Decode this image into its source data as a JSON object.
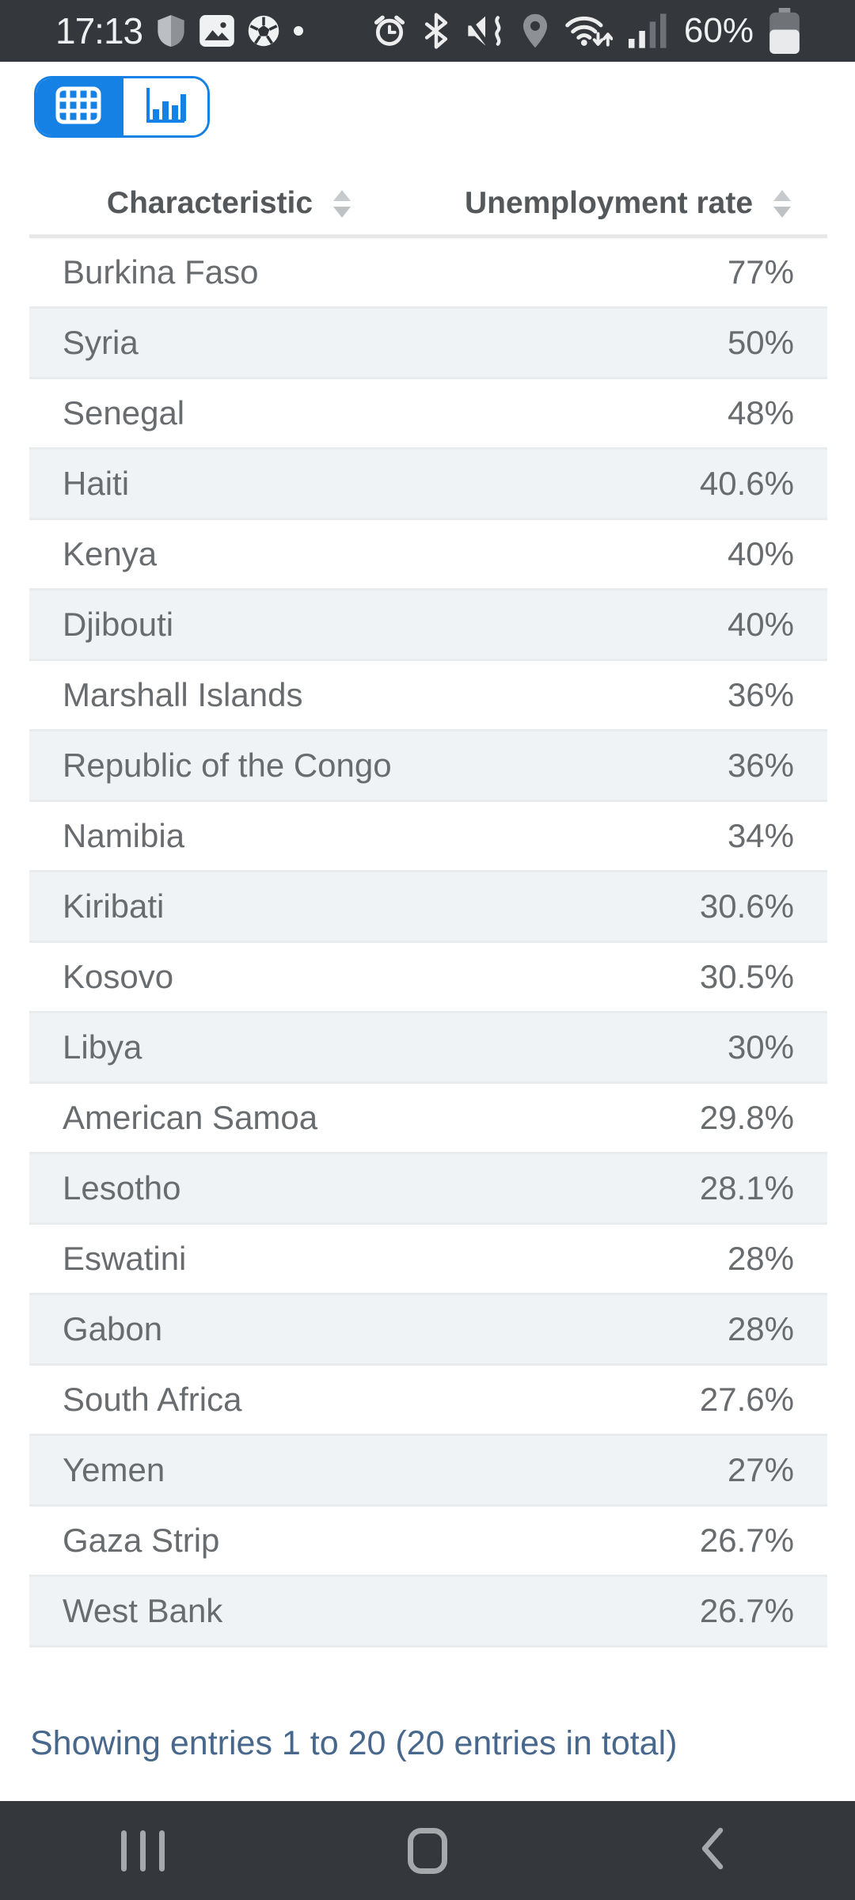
{
  "status_bar": {
    "time": "17:13",
    "battery_percent": "60%",
    "left_icons": [
      "shield-icon",
      "gallery-icon",
      "soccer-ball-icon",
      "notification-dot-icon"
    ],
    "right_icons": [
      "alarm-icon",
      "bluetooth-icon",
      "mute-vibrate-icon",
      "location-icon",
      "wifi-icon",
      "signal-icon",
      "battery-icon"
    ]
  },
  "view_toggle": {
    "options": [
      {
        "id": "table-view",
        "icon": "table-grid-icon",
        "active": true
      },
      {
        "id": "chart-view",
        "icon": "bar-chart-icon",
        "active": false
      }
    ]
  },
  "table": {
    "columns": [
      "Characteristic",
      "Unemployment rate"
    ],
    "rows": [
      {
        "characteristic": "Burkina Faso",
        "unemployment_rate": "77%"
      },
      {
        "characteristic": "Syria",
        "unemployment_rate": "50%"
      },
      {
        "characteristic": "Senegal",
        "unemployment_rate": "48%"
      },
      {
        "characteristic": "Haiti",
        "unemployment_rate": "40.6%"
      },
      {
        "characteristic": "Kenya",
        "unemployment_rate": "40%"
      },
      {
        "characteristic": "Djibouti",
        "unemployment_rate": "40%"
      },
      {
        "characteristic": "Marshall Islands",
        "unemployment_rate": "36%"
      },
      {
        "characteristic": "Republic of the Congo",
        "unemployment_rate": "36%"
      },
      {
        "characteristic": "Namibia",
        "unemployment_rate": "34%"
      },
      {
        "characteristic": "Kiribati",
        "unemployment_rate": "30.6%"
      },
      {
        "characteristic": "Kosovo",
        "unemployment_rate": "30.5%"
      },
      {
        "characteristic": "Libya",
        "unemployment_rate": "30%"
      },
      {
        "characteristic": "American Samoa",
        "unemployment_rate": "29.8%"
      },
      {
        "characteristic": "Lesotho",
        "unemployment_rate": "28.1%"
      },
      {
        "characteristic": "Eswatini",
        "unemployment_rate": "28%"
      },
      {
        "characteristic": "Gabon",
        "unemployment_rate": "28%"
      },
      {
        "characteristic": "South Africa",
        "unemployment_rate": "27.6%"
      },
      {
        "characteristic": "Yemen",
        "unemployment_rate": "27%"
      },
      {
        "characteristic": "Gaza Strip",
        "unemployment_rate": "26.7%"
      },
      {
        "characteristic": "West Bank",
        "unemployment_rate": "26.7%"
      }
    ]
  },
  "footer": {
    "text": "Showing entries 1 to 20 (20 entries in total)"
  },
  "colors": {
    "accent_blue": "#1681e4",
    "status_nav_background": "#34373c",
    "row_alternate": "#eff3f6",
    "footer_text": "#47688c",
    "row_text": "#696c6f",
    "header_text": "#55585b"
  }
}
